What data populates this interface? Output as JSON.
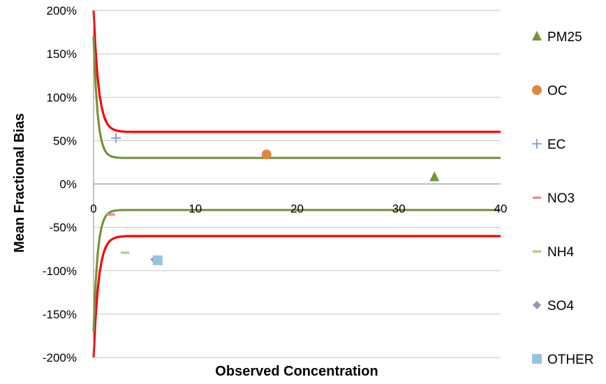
{
  "chart_data": {
    "type": "scatter",
    "xlabel": "Observed Concentration",
    "ylabel": "Mean Fractional Bias",
    "xlim": [
      0,
      40
    ],
    "ylim": [
      -2,
      2
    ],
    "x_ticks": [
      0,
      10,
      20,
      30,
      40
    ],
    "x_tick_labels": [
      "0",
      "10",
      "20",
      "30",
      "40"
    ],
    "y_ticks": [
      2,
      1.5,
      1,
      0.5,
      0,
      -0.5,
      -1,
      -1.5,
      -2
    ],
    "y_tick_labels": [
      "200%",
      "150%",
      "100%",
      "50%",
      "0%",
      "-50%",
      "-100%",
      "-150%",
      "-200%"
    ],
    "grid": "horizontal",
    "legend_position": "right",
    "series": [
      {
        "name": "PM25",
        "marker": "triangle",
        "color": "#77933c",
        "x": [
          33.5
        ],
        "y": [
          0.08
        ]
      },
      {
        "name": "OC",
        "marker": "circle",
        "color": "#e0873f",
        "x": [
          17
        ],
        "y": [
          0.34
        ]
      },
      {
        "name": "EC",
        "marker": "plus",
        "color": "#6f8fd0",
        "x": [
          2.2
        ],
        "y": [
          0.53
        ]
      },
      {
        "name": "NO3",
        "marker": "dash",
        "color": "#d99694",
        "x": [
          1.7
        ],
        "y": [
          -0.35
        ]
      },
      {
        "name": "NH4",
        "marker": "dash",
        "color": "#b3cf8a",
        "x": [
          3.1
        ],
        "y": [
          -0.79
        ]
      },
      {
        "name": "SO4",
        "marker": "diamond",
        "color": "#9c8fbf",
        "x": [
          6.0
        ],
        "y": [
          -0.87
        ]
      },
      {
        "name": "OTHER",
        "marker": "square",
        "color": "#93c6dc",
        "x": [
          6.3
        ],
        "y": [
          -0.88
        ]
      }
    ],
    "curves": [
      {
        "color": "#ff0000",
        "asymptote": 0.6,
        "start": 2.0,
        "decay": 0.5
      },
      {
        "color": "#ff0000",
        "asymptote": -0.6,
        "start": -2.0,
        "decay": 0.5
      },
      {
        "color": "#77933c",
        "asymptote": 0.3,
        "start": 1.7,
        "decay": 0.4
      },
      {
        "color": "#77933c",
        "asymptote": -0.3,
        "start": -1.7,
        "decay": 0.4
      }
    ]
  }
}
